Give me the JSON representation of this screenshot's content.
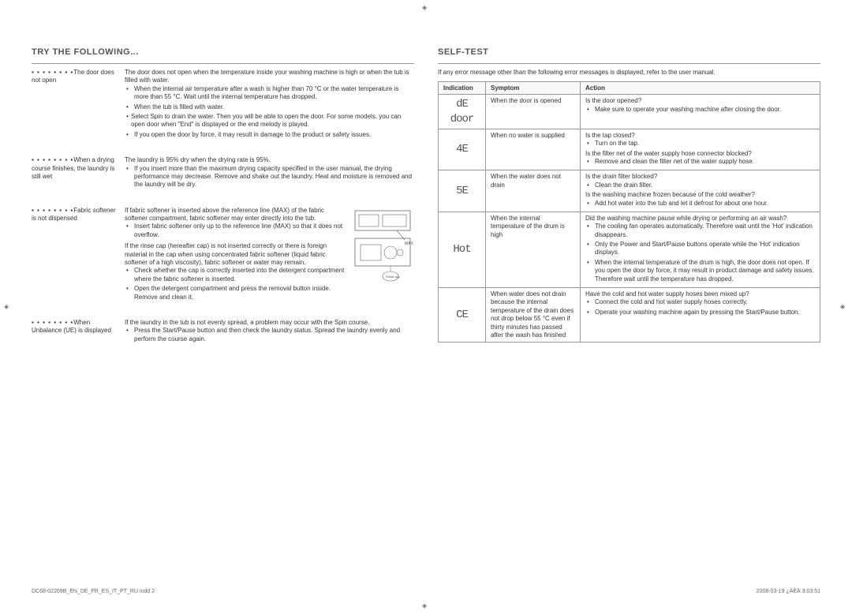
{
  "left": {
    "title": "TRY THE FOLLOWING...",
    "blocks": [
      {
        "label_l1": "The door does not open",
        "desc_main": "The door does not open when the temperature inside your washing machine is high or when the tub is filled with water.",
        "bullets": [
          "When the internal air temperature after a wash is higher than 70 °C or the water temperature is more than 55 °C. Wait until the internal temperature has dropped.",
          "When the tub is filled with water."
        ],
        "nested": [
          "Select Spin to drain the water. Then you will be able to open the door. For some models, you can open door when \"End\" is displayed or the end melody is played."
        ],
        "trailing": "If you open the door by force, it may result in damage to the product or safety issues."
      },
      {
        "label_l1": "When a drying course finishes, the laundry is still wet",
        "desc_main": "The laundry is 95% dry when the drying rate is 95%.",
        "bullets": [
          "If you insert more than the maximum drying capacity specified in the user manual, the drying performance may decrease. Remove and shake out the laundry. Heat and moisture is removed and the laundry will be dry."
        ]
      },
      {
        "label_l1": "Fabric softener is not dispensed",
        "desc_main": "If fabric softener is inserted above the reference line (MAX) of the fabric softener compartment, fabric softener may enter directly into the tub.",
        "bullets": [
          "Insert fabric softener only up to the reference line (MAX) so that it does not overflow."
        ],
        "extra": "If the rinse cap (hereafter cap) is not inserted correctly or there is foreign material in the cap when using concentrated fabric softener (liquid fabric softener of a high viscosity), fabric softener or water may remain.",
        "extra_bullets": [
          "Check whether the cap is correctly inserted into the detergent compartment where the fabric softener is inserted.",
          "Open the detergent compartment and press the removal button inside. Remove and clean it."
        ],
        "has_diagram": true,
        "diagram_label": "Rinse cap"
      },
      {
        "label_l1": "When Unbalance (UE) is displayed",
        "desc_main": "If the laundry in the tub is not evenly spread, a problem may occur with the Spin course.",
        "bullets": [
          "Press the Start/Pause button and then check the laundry status. Spread the laundry evenly and perform the course again."
        ]
      }
    ]
  },
  "right": {
    "title": "SELF-TEST",
    "intro": "If any error message other than the following error messages is displayed, refer to the user manual.",
    "headers": {
      "c1": "Indication",
      "c2": "Symptom",
      "c3": "Action"
    },
    "rows": [
      {
        "ind": [
          "dE",
          "door"
        ],
        "symptom": "When the door is opened",
        "action": "Is the door opened?\n• Make sure to operate your washing machine after closing the door."
      },
      {
        "ind": [
          "4E"
        ],
        "symptom": "When no water is supplied",
        "action": "Is the tap closed?\n• Turn on the tap.\nIs the filter net of the water supply hose connector blocked?\n• Remove and clean the filter net of the water supply hose."
      },
      {
        "ind": [
          "5E"
        ],
        "symptom": "When the water does not drain",
        "action": "Is the drain filter blocked?\n• Clean the drain filter.\nIs the washing machine frozen because of the cold weather?\n• Add hot water into the tub and let it defrost for about one hour."
      },
      {
        "ind": [
          "Hot"
        ],
        "symptom": "When the internal temperature of the drum is high",
        "action": "Did the washing machine pause while drying or performing an air wash?\n• The cooling fan operates automatically. Therefore wait until the 'Hot' indication disappears.\n• Only the Power and Start/Pause buttons operate while the 'Hot' indication displays.\n• When the internal temperature of the drum is high, the door does not open. If you open the door by force, it may result in product damage and safety issues. Therefore wait until the temperature has dropped."
      },
      {
        "ind": [
          "CE"
        ],
        "symptom": "When water does not drain because the internal temperature of the drain does not drop below 55 °C even if thirty minutes has passed after the wash has finished",
        "action": "Have the cold and hot water supply hoses been mixed up?\n• Connect the cold and hot water supply hoses correctly.\n• Operate your washing machine again by pressing the Start/Pause button."
      }
    ]
  },
  "footer": {
    "left": "DC68-02209B_EN_DE_FR_ES_IT_PT_RU.indd   2",
    "right": "2008-03-19   ¿ÀÈÄ 3:03:51"
  }
}
